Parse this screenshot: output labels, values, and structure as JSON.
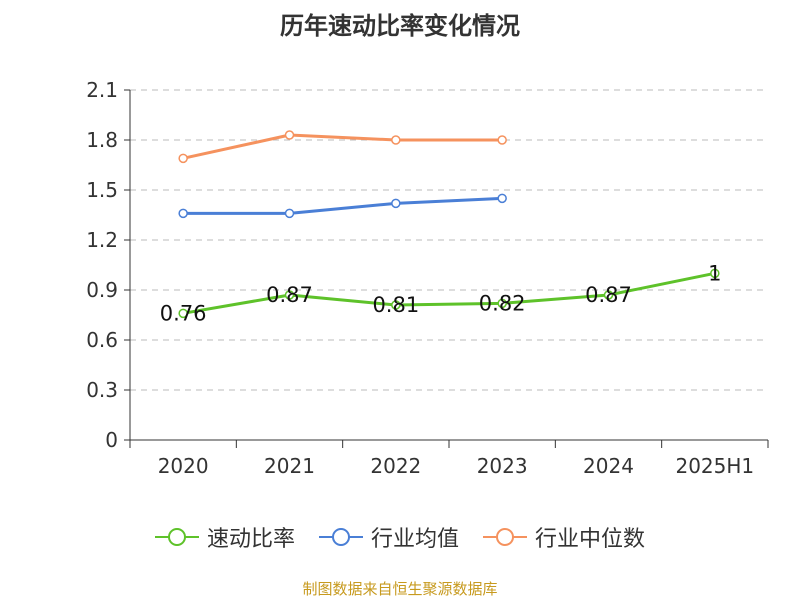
{
  "title": "历年速动比率变化情况",
  "source": "制图数据来自恒生聚源数据库",
  "colors": {
    "speed_ratio": "#5ec22a",
    "industry_mean": "#4a7fd6",
    "industry_median": "#f5925e",
    "grid": "#bbbbbb",
    "axis": "#333333"
  },
  "chart_data": {
    "type": "line",
    "title": "历年速动比率变化情况",
    "categories": [
      "2020",
      "2021",
      "2022",
      "2023",
      "2024",
      "2025H1"
    ],
    "y_ticks": [
      "0",
      "0.3",
      "0.6",
      "0.9",
      "1.2",
      "1.5",
      "1.8",
      "2.1"
    ],
    "ylim": [
      0,
      2.1
    ],
    "grid": true,
    "legend_position": "bottom",
    "series": [
      {
        "key": "speed_ratio",
        "name": "速动比率",
        "values": [
          0.76,
          0.87,
          0.81,
          0.82,
          0.87,
          1.0
        ],
        "labels": [
          "0.76",
          "0.87",
          "0.81",
          "0.82",
          "0.87",
          "1"
        ]
      },
      {
        "key": "industry_mean",
        "name": "行业均值",
        "values": [
          1.36,
          1.36,
          1.42,
          1.45,
          null,
          null
        ]
      },
      {
        "key": "industry_median",
        "name": "行业中位数",
        "values": [
          1.69,
          1.83,
          1.8,
          1.8,
          null,
          null
        ]
      }
    ]
  }
}
